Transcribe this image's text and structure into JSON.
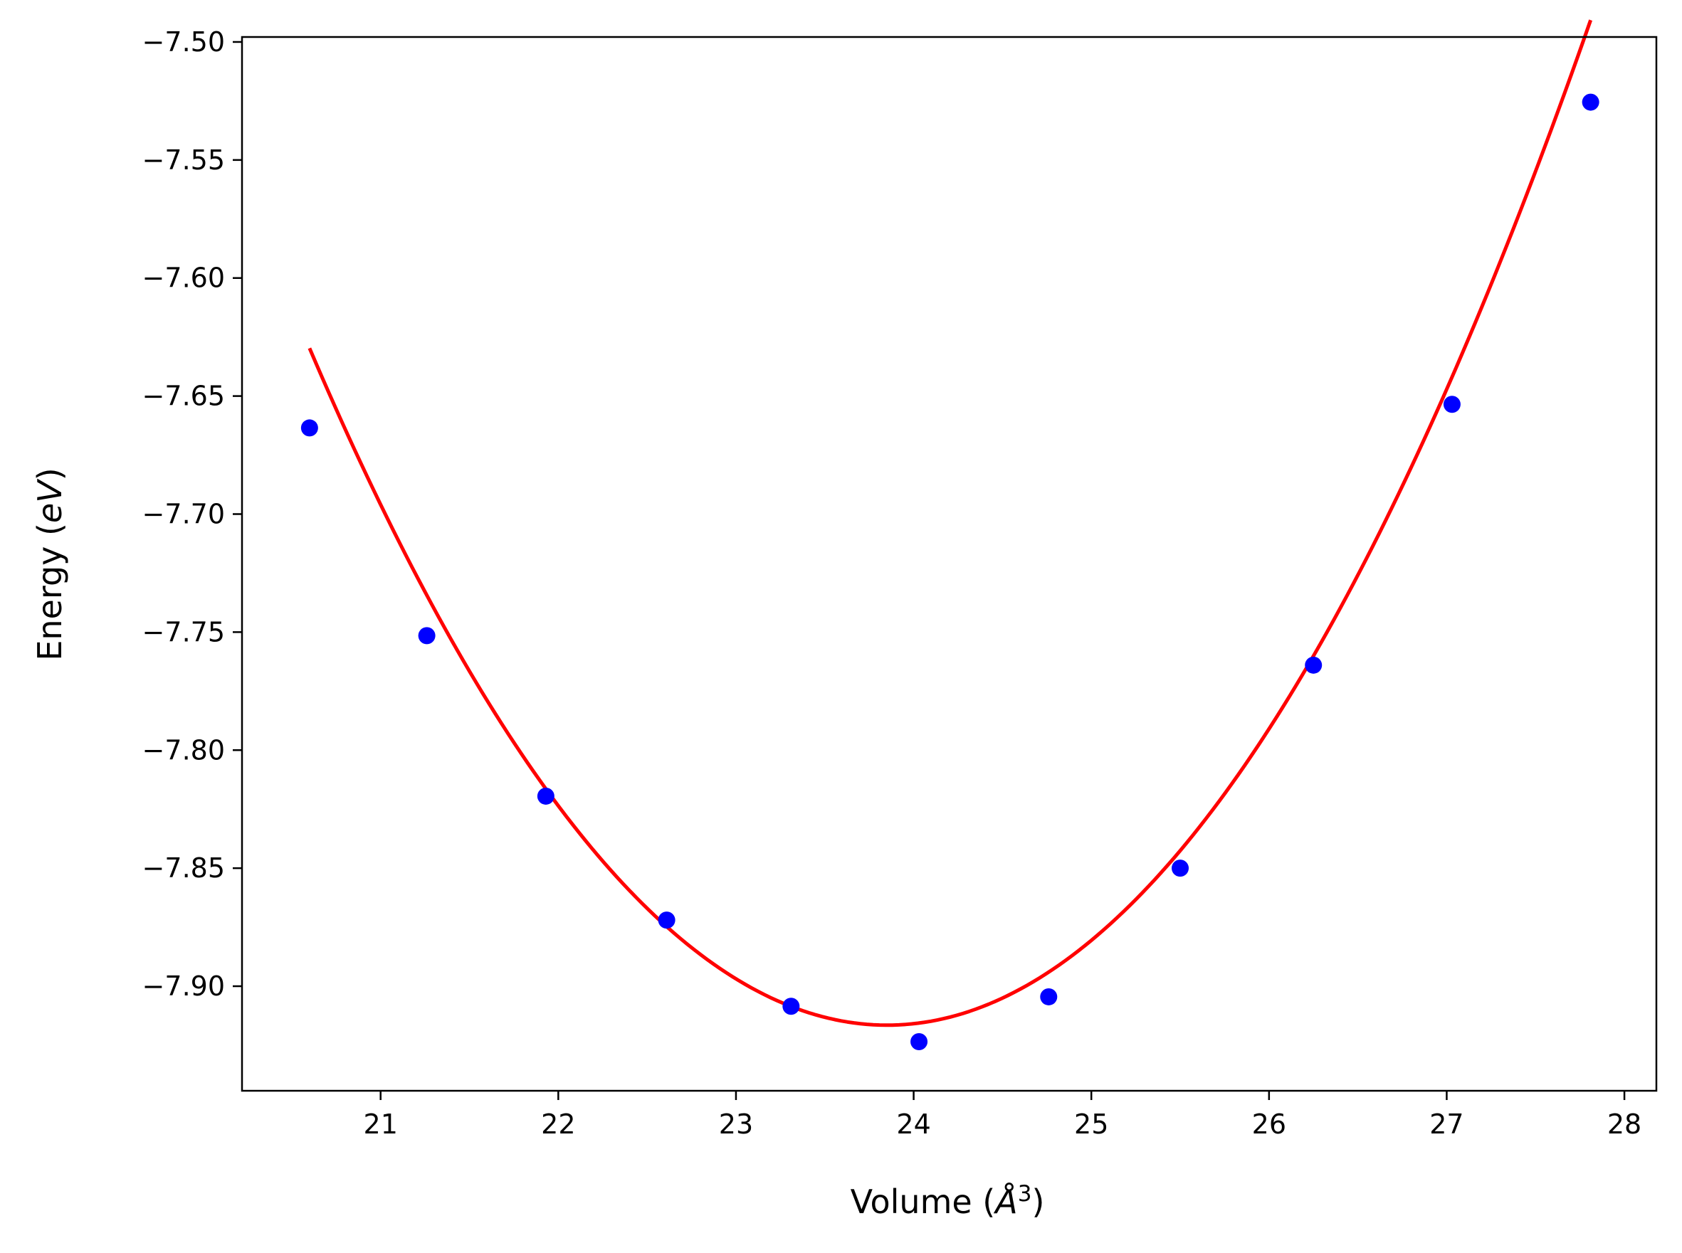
{
  "chart_data": {
    "type": "scatter",
    "title": "",
    "xlabel": {
      "pre": "Volume (",
      "symbol": "Å",
      "sup": "3",
      "post": ")"
    },
    "ylabel": {
      "pre": "Energy (",
      "symbol": "eV",
      "post": ")"
    },
    "xlim": [
      20.22,
      28.18
    ],
    "ylim": [
      -7.9443,
      -7.4979
    ],
    "xticks": [
      21,
      22,
      23,
      24,
      25,
      26,
      27,
      28
    ],
    "xtick_labels": [
      "21",
      "22",
      "23",
      "24",
      "25",
      "26",
      "27",
      "28"
    ],
    "yticks": [
      -7.5,
      -7.55,
      -7.6,
      -7.65,
      -7.7,
      -7.75,
      -7.8,
      -7.85,
      -7.9
    ],
    "ytick_labels": [
      "−7.50",
      "−7.55",
      "−7.60",
      "−7.65",
      "−7.70",
      "−7.75",
      "−7.80",
      "−7.85",
      "−7.90"
    ],
    "grid": false,
    "series": [
      {
        "kind": "scatter",
        "color": "#0000ff",
        "x": [
          20.6,
          21.26,
          21.93,
          22.61,
          23.31,
          24.03,
          24.76,
          25.5,
          26.25,
          27.03,
          27.81
        ],
        "y": [
          -7.6635,
          -7.7515,
          -7.8195,
          -7.872,
          -7.9085,
          -7.9235,
          -7.9045,
          -7.85,
          -7.764,
          -7.6535,
          -7.5255
        ]
      },
      {
        "kind": "line",
        "color": "#ff0000",
        "fit": {
          "type": "quadratic",
          "vertex_x": 23.85,
          "vertex_y": -7.9165,
          "curvature": 0.02715
        },
        "x_range": [
          20.6,
          27.81
        ]
      }
    ]
  }
}
